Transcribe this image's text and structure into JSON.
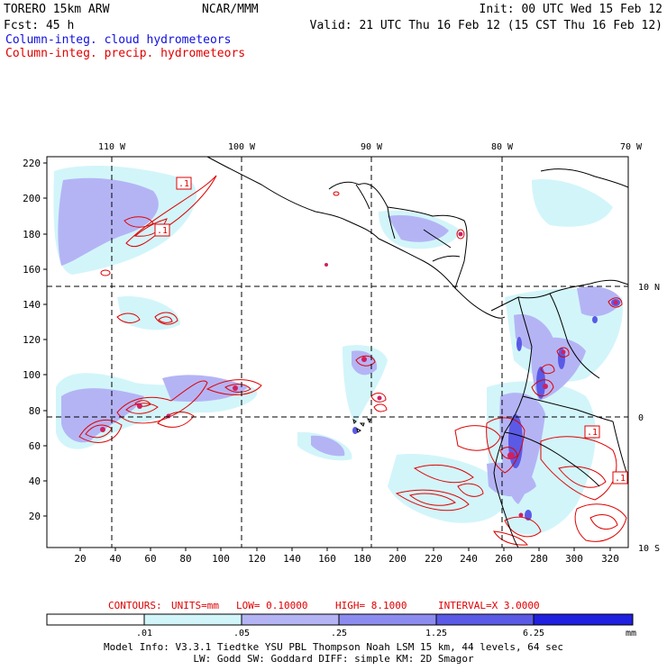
{
  "header": {
    "model": "TORERO  15km ARW",
    "org": "NCAR/MMM",
    "init": "Init: 00 UTC Wed 15 Feb 12",
    "fcst": "Fcst:   45 h",
    "valid": "Valid: 21 UTC Thu 16 Feb 12 (15 CST Thu 16 Feb 12)",
    "field1": "Column-integ. cloud hydrometeors",
    "field2": "Column-integ. precip. hydrometeors"
  },
  "colors": {
    "field1": "#1010e0",
    "field2": "#e00000"
  },
  "top_lon_labels": [
    "110 W",
    "100 W",
    "90 W",
    "80 W",
    "70 W"
  ],
  "right_lat_labels": [
    "10 N",
    "0",
    "10 S"
  ],
  "y_ticks": [
    "220",
    "200",
    "180",
    "160",
    "140",
    "120",
    "100",
    "80",
    "60",
    "40",
    "20"
  ],
  "x_ticks": [
    "20",
    "40",
    "60",
    "80",
    "100",
    "120",
    "140",
    "160",
    "180",
    "200",
    "220",
    "240",
    "260",
    "280",
    "300",
    "320"
  ],
  "contour_labels": [
    ".1",
    ".1",
    ".1",
    ".1"
  ],
  "contour_info": {
    "contours": "CONTOURS:",
    "units": "UNITS=mm",
    "low": "LOW= 0.10000",
    "high": "HIGH=  8.1000",
    "interval": "INTERVAL=X  3.0000"
  },
  "colorbar": {
    "labels": [
      ".01",
      ".05",
      ".25",
      "1.25",
      "6.25"
    ],
    "units": "mm",
    "colors": [
      "#ffffff",
      "#d2f5fa",
      "#b4b4f5",
      "#8c8cf0",
      "#5a5ae6",
      "#2020e0"
    ]
  },
  "footer": {
    "line1": "Model Info: V3.3.1   Tiedtke YSU PBL   Thompson    Noah LSM  15 km,   44 levels,   64 sec",
    "line2": "LW: Godd SW: Goddard DIFF: simple KM: 2D Smagor"
  }
}
